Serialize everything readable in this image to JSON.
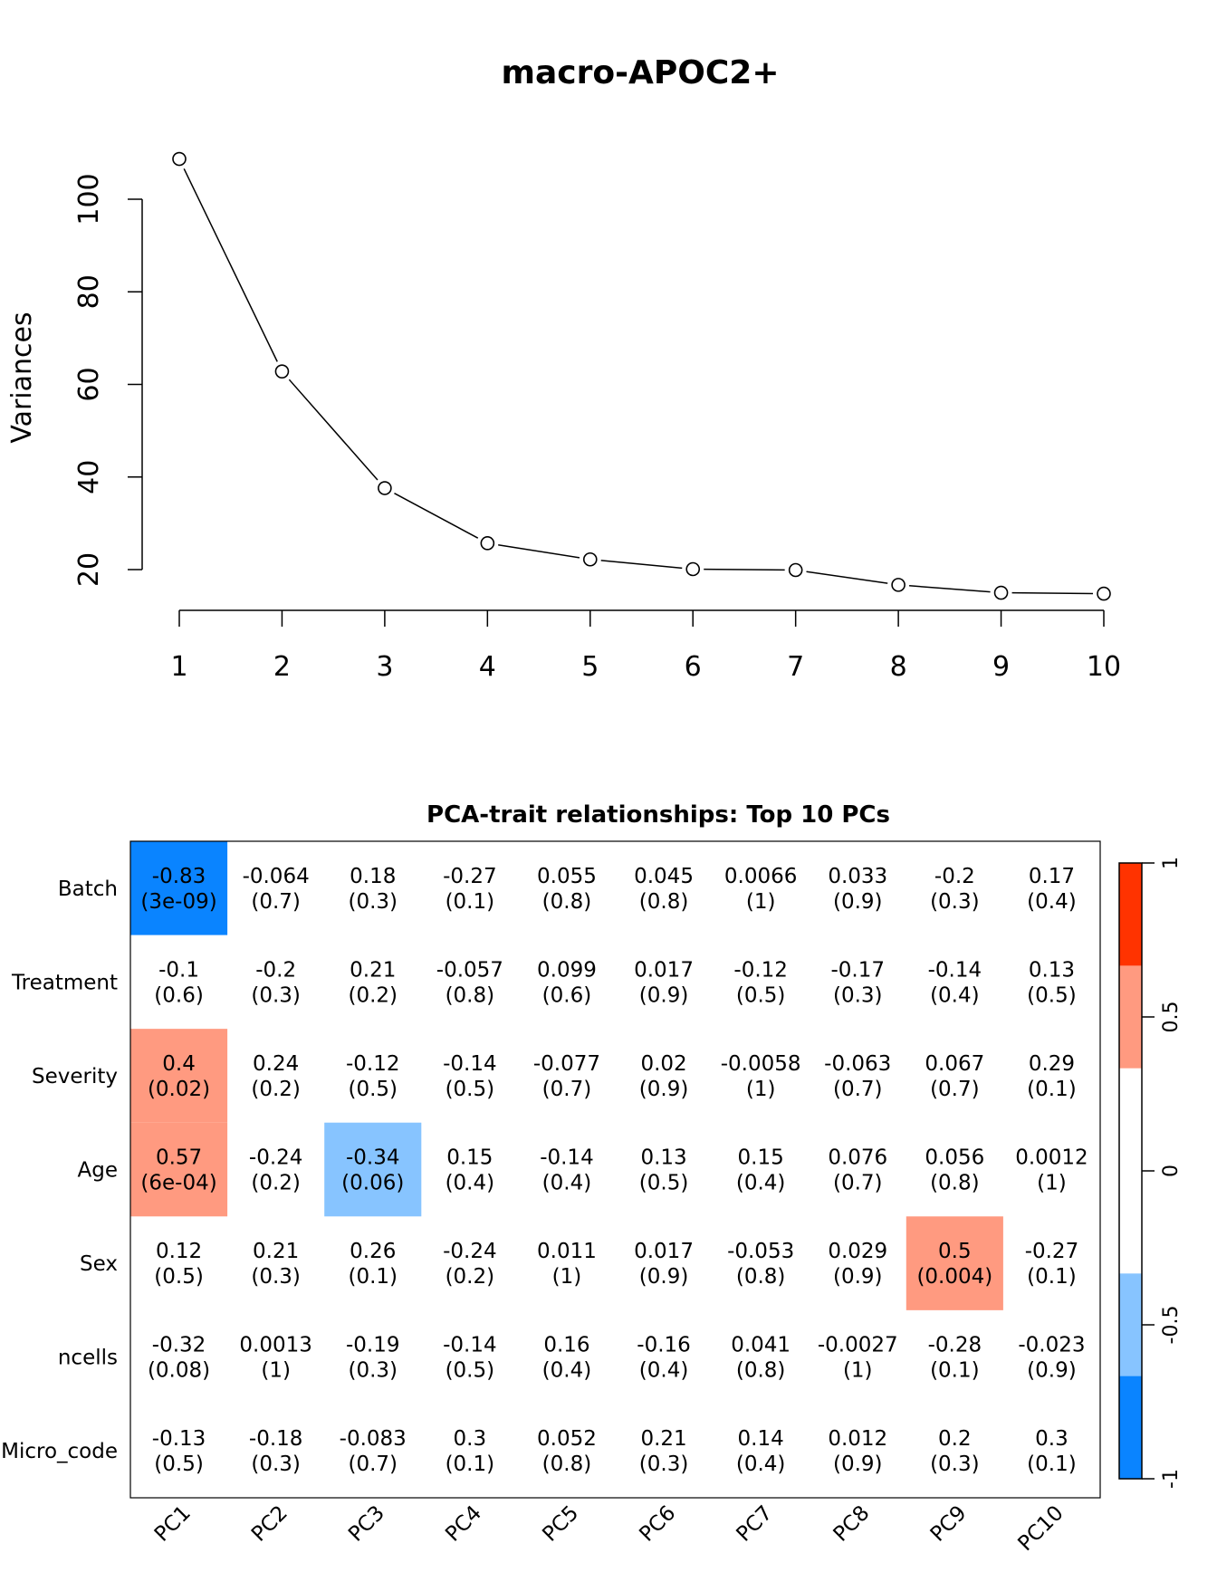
{
  "chart_data": [
    {
      "type": "line",
      "title": "macro-APOC2+",
      "xlabel": "",
      "ylabel": "Variances",
      "x": [
        1,
        2,
        3,
        4,
        5,
        6,
        7,
        8,
        9,
        10
      ],
      "y": [
        108.7,
        62.8,
        37.6,
        25.7,
        22.2,
        20.1,
        19.9,
        16.7,
        15.0,
        14.8
      ],
      "x_ticks": [
        "1",
        "2",
        "3",
        "4",
        "5",
        "6",
        "7",
        "8",
        "9",
        "10"
      ],
      "y_ticks": [
        "20",
        "40",
        "60",
        "80",
        "100"
      ],
      "marker": "open-circle",
      "grid": false
    },
    {
      "type": "heatmap",
      "title": "PCA-trait relationships: Top 10 PCs",
      "columns": [
        "PC1",
        "PC2",
        "PC3",
        "PC4",
        "PC5",
        "PC6",
        "PC7",
        "PC8",
        "PC9",
        "PC10"
      ],
      "rows": [
        {
          "label": "Batch",
          "cor": [
            "-0.83",
            "-0.064",
            "0.18",
            "-0.27",
            "0.055",
            "0.045",
            "0.0066",
            "0.033",
            "-0.2",
            "0.17"
          ],
          "p": [
            "(3e-09)",
            "(0.7)",
            "(0.3)",
            "(0.1)",
            "(0.8)",
            "(0.8)",
            "(1)",
            "(0.9)",
            "(0.3)",
            "(0.4)"
          ]
        },
        {
          "label": "Treatment",
          "cor": [
            "-0.1",
            "-0.2",
            "0.21",
            "-0.057",
            "0.099",
            "0.017",
            "-0.12",
            "-0.17",
            "-0.14",
            "0.13"
          ],
          "p": [
            "(0.6)",
            "(0.3)",
            "(0.2)",
            "(0.8)",
            "(0.6)",
            "(0.9)",
            "(0.5)",
            "(0.3)",
            "(0.4)",
            "(0.5)"
          ]
        },
        {
          "label": "Severity",
          "cor": [
            "0.4",
            "0.24",
            "-0.12",
            "-0.14",
            "-0.077",
            "0.02",
            "-0.0058",
            "-0.063",
            "0.067",
            "0.29"
          ],
          "p": [
            "(0.02)",
            "(0.2)",
            "(0.5)",
            "(0.5)",
            "(0.7)",
            "(0.9)",
            "(1)",
            "(0.7)",
            "(0.7)",
            "(0.1)"
          ]
        },
        {
          "label": "Age",
          "cor": [
            "0.57",
            "-0.24",
            "-0.34",
            "0.15",
            "-0.14",
            "0.13",
            "0.15",
            "0.076",
            "0.056",
            "0.0012"
          ],
          "p": [
            "(6e-04)",
            "(0.2)",
            "(0.06)",
            "(0.4)",
            "(0.4)",
            "(0.5)",
            "(0.4)",
            "(0.7)",
            "(0.8)",
            "(1)"
          ]
        },
        {
          "label": "Sex",
          "cor": [
            "0.12",
            "0.21",
            "0.26",
            "-0.24",
            "0.011",
            "0.017",
            "-0.053",
            "0.029",
            "0.5",
            "-0.27"
          ],
          "p": [
            "(0.5)",
            "(0.3)",
            "(0.1)",
            "(0.2)",
            "(1)",
            "(0.9)",
            "(0.8)",
            "(0.9)",
            "(0.004)",
            "(0.1)"
          ]
        },
        {
          "label": "ncells",
          "cor": [
            "-0.32",
            "0.0013",
            "-0.19",
            "-0.14",
            "0.16",
            "-0.16",
            "0.041",
            "-0.0027",
            "-0.28",
            "-0.023"
          ],
          "p": [
            "(0.08)",
            "(1)",
            "(0.3)",
            "(0.5)",
            "(0.4)",
            "(0.4)",
            "(0.8)",
            "(1)",
            "(0.1)",
            "(0.9)"
          ]
        },
        {
          "label": "Micro_code",
          "cor": [
            "-0.13",
            "-0.18",
            "-0.083",
            "0.3",
            "0.052",
            "0.21",
            "0.14",
            "0.012",
            "0.2",
            "0.3"
          ],
          "p": [
            "(0.5)",
            "(0.3)",
            "(0.7)",
            "(0.1)",
            "(0.8)",
            "(0.3)",
            "(0.4)",
            "(0.9)",
            "(0.3)",
            "(0.1)"
          ]
        }
      ],
      "legend": {
        "range": [
          -1,
          1
        ],
        "ticks": [
          "1",
          "0.5",
          "0",
          "-0.5",
          "-1"
        ],
        "colors": [
          "#0A84FF",
          "#87C4FF",
          "#FFFFFF",
          "#FF9A80",
          "#FF3300"
        ],
        "placement": "right"
      }
    }
  ]
}
